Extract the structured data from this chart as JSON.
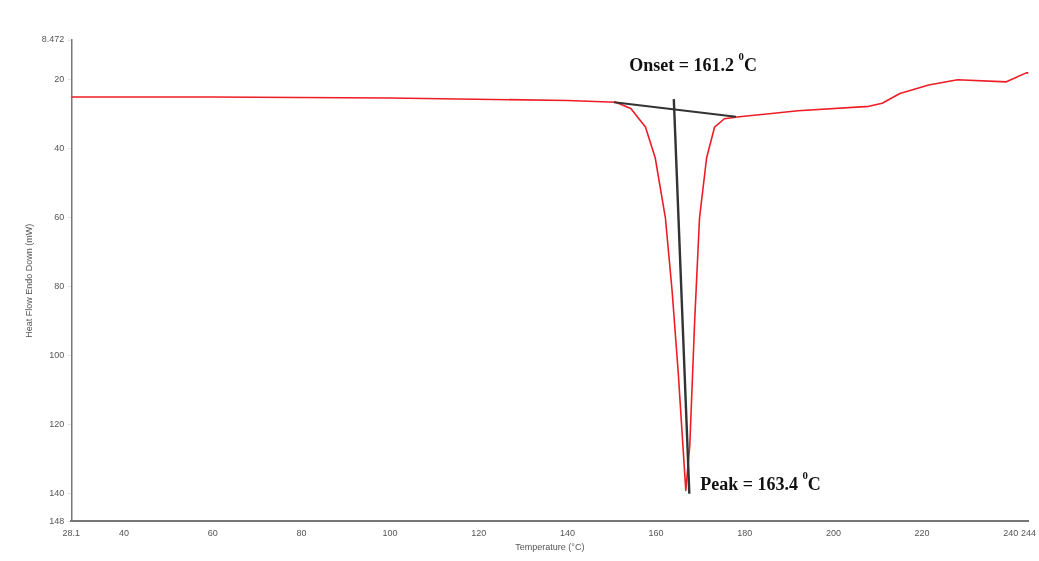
{
  "chart_data": {
    "type": "line",
    "xlabel": "Temperature (°C)",
    "ylabel": "Heat Flow Endo Down (mW)",
    "xlim": [
      28.1,
      244
    ],
    "xticks": [
      28.1,
      40,
      60,
      80,
      100,
      120,
      140,
      160,
      180,
      200,
      220,
      240,
      244
    ],
    "ylim": [
      148,
      8.472
    ],
    "yticks": [
      8.472,
      20,
      40,
      60,
      80,
      100,
      120,
      140,
      148
    ],
    "grid": false,
    "legend": false,
    "marker": "none",
    "line_style": "solid",
    "series": [
      {
        "color": "#ee1c25",
        "x": [
          28.1,
          60,
          100,
          140,
          150.9,
          154.3,
          157.6,
          159.8,
          162.1,
          163.6,
          165,
          165.9,
          166.7,
          167.6,
          168.7,
          169.8,
          171.4,
          173.2,
          175.4,
          178.8,
          192,
          208,
          211,
          215,
          221.5,
          228,
          239,
          243.5,
          244
        ],
        "values": [
          25,
          25,
          25.3,
          26,
          26.5,
          28.3,
          33.7,
          42.6,
          60,
          81,
          105,
          123,
          139,
          126,
          90,
          60,
          42.6,
          33.7,
          31.3,
          30.7,
          29,
          27.7,
          26.8,
          24,
          21.5,
          20,
          20.6,
          18,
          18
        ]
      },
      {
        "color": "#333333",
        "x": [
          150.5,
          178
        ],
        "values": [
          26.5,
          30.7
        ]
      },
      {
        "color": "#333333",
        "x": [
          164,
          167.5
        ],
        "values": [
          25.6,
          140
        ]
      }
    ],
    "annotations": [
      "Onset = 161.2 $^{0}$C",
      "Peak = 163.4 $^{0}$C"
    ]
  }
}
